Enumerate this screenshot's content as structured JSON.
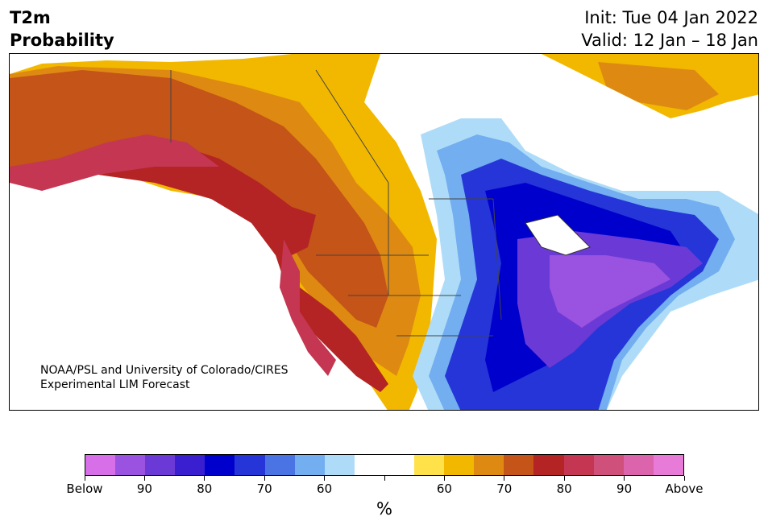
{
  "header": {
    "title": "T2m\nProbability",
    "init": "Init: Tue 04 Jan 2022",
    "valid": "Valid: 12 Jan – 18 Jan"
  },
  "map": {
    "credit_line1": "NOAA/PSL and University of Colorado/CIRES",
    "credit_line2": "Experimental LIM Forecast"
  },
  "colorbar": {
    "colors": [
      "#d66fe8",
      "#9a52e0",
      "#6b3ad6",
      "#3a1fd0",
      "#0000cc",
      "#2535d8",
      "#4a74e4",
      "#72aef0",
      "#aedcf8",
      "#ffffff",
      "#ffffff",
      "#ffe24a",
      "#f2b800",
      "#de8a12",
      "#c45418",
      "#b42424",
      "#c43652",
      "#d0507c",
      "#dc64ac",
      "#e87ad8"
    ],
    "tick_labels": [
      "Below",
      "90",
      "80",
      "70",
      "60",
      "",
      "60",
      "70",
      "80",
      "90",
      "Above"
    ],
    "unit": "%"
  }
}
